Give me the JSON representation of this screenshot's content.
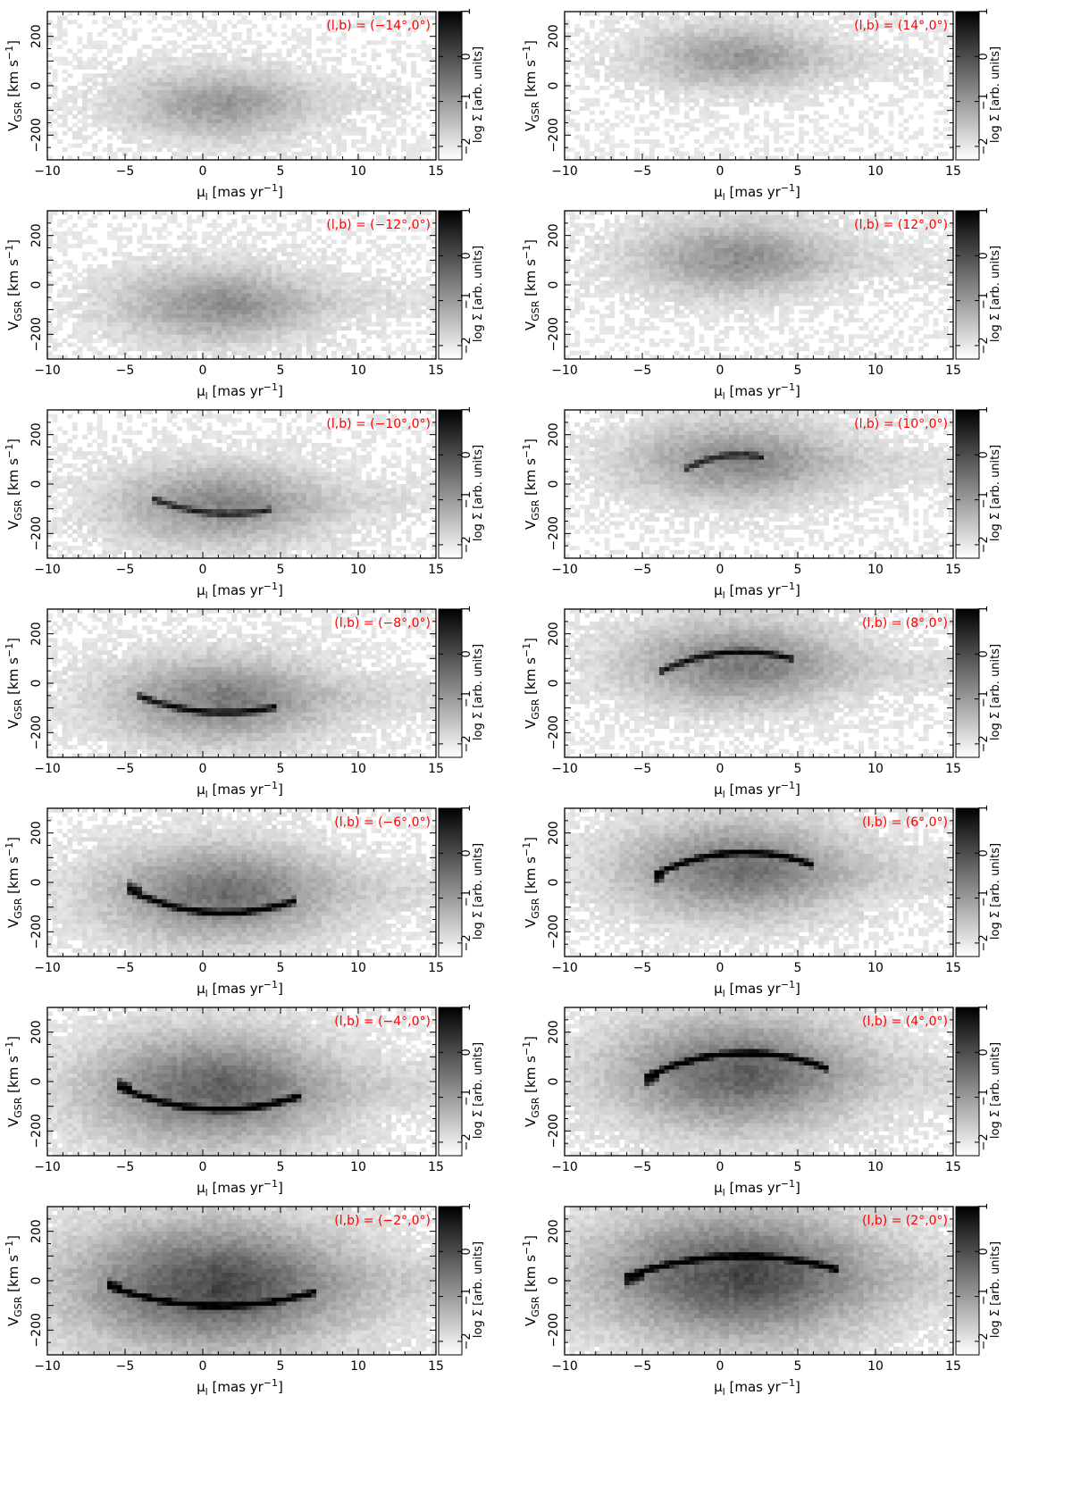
{
  "figure": {
    "colors": {
      "label": "#ff0000",
      "axis": "#000000",
      "background": "#ffffff"
    },
    "cmap": "grey (white = low, black = high)"
  },
  "chart_data": [
    {
      "type": "heatmap",
      "title": "(l,b) = (−14°,0°)",
      "l": -14,
      "xlabel": "μ_l [mas yr^-1]",
      "ylabel": "V_GSR [km s^-1]",
      "xlim": [
        -10,
        15
      ],
      "ylim": [
        -300,
        300
      ],
      "xticks": [
        -10,
        -5,
        0,
        5,
        10,
        15
      ],
      "yticks": [
        -200,
        0,
        200
      ],
      "colorbar": {
        "label": "log Σ [arb. units]",
        "range": [
          -2.3,
          1
        ],
        "ticks": [
          -2,
          -1,
          0,
          1
        ]
      },
      "distribution": {
        "cx": 1,
        "cy": -75,
        "sx": 2.8,
        "sy": 65,
        "vx": 0,
        "vy": -5,
        "amp": 0.38,
        "tail_mu": 10,
        "stream": null
      }
    },
    {
      "type": "heatmap",
      "title": "(l,b) = (14°,0°)",
      "l": 14,
      "xlabel": "μ_l [mas yr^-1]",
      "ylabel": "V_GSR [km s^-1]",
      "xlim": [
        -10,
        15
      ],
      "ylim": [
        -300,
        300
      ],
      "xticks": [
        -10,
        -5,
        0,
        5,
        10,
        15
      ],
      "yticks": [
        -200,
        0,
        200
      ],
      "colorbar": {
        "label": "log Σ [arb. units]",
        "range": [
          -2.3,
          1
        ],
        "ticks": [
          -2,
          -1,
          0,
          1
        ]
      },
      "distribution": {
        "cx": 1,
        "cy": 115,
        "sx": 2.8,
        "sy": 60,
        "vx": 0,
        "vy": 5,
        "amp": 0.38,
        "tail_mu": 10,
        "stream": null
      }
    },
    {
      "type": "heatmap",
      "title": "(l,b) = (−12°,0°)",
      "l": -12,
      "xlabel": "μ_l [mas yr^-1]",
      "ylabel": "V_GSR [km s^-1]",
      "xlim": [
        -10,
        15
      ],
      "ylim": [
        -300,
        300
      ],
      "xticks": [
        -10,
        -5,
        0,
        5,
        10,
        15
      ],
      "yticks": [
        -200,
        0,
        200
      ],
      "colorbar": {
        "label": "log Σ [arb. units]",
        "range": [
          -2.3,
          1
        ],
        "ticks": [
          -2,
          -1,
          0,
          1
        ]
      },
      "distribution": {
        "cx": 1,
        "cy": -80,
        "sx": 3.0,
        "sy": 70,
        "vx": 0,
        "vy": -4,
        "amp": 0.42,
        "tail_mu": 11,
        "stream": null
      }
    },
    {
      "type": "heatmap",
      "title": "(l,b) = (12°,0°)",
      "l": 12,
      "xlabel": "μ_l [mas yr^-1]",
      "ylabel": "V_GSR [km s^-1]",
      "xlim": [
        -10,
        15
      ],
      "ylim": [
        -300,
        300
      ],
      "xticks": [
        -10,
        -5,
        0,
        5,
        10,
        15
      ],
      "yticks": [
        -200,
        0,
        200
      ],
      "colorbar": {
        "label": "log Σ [arb. units]",
        "range": [
          -2.3,
          1
        ],
        "ticks": [
          -2,
          -1,
          0,
          1
        ]
      },
      "distribution": {
        "cx": 1,
        "cy": 110,
        "sx": 3.0,
        "sy": 70,
        "vx": 0,
        "vy": 4,
        "amp": 0.42,
        "tail_mu": 11,
        "stream": null
      }
    },
    {
      "type": "heatmap",
      "title": "(l,b) = (−10°,0°)",
      "l": -10,
      "xlabel": "μ_l [mas yr^-1]",
      "ylabel": "V_GSR [km s^-1]",
      "xlim": [
        -10,
        15
      ],
      "ylim": [
        -300,
        300
      ],
      "xticks": [
        -10,
        -5,
        0,
        5,
        10,
        15
      ],
      "yticks": [
        -200,
        0,
        200
      ],
      "colorbar": {
        "label": "log Σ [arb. units]",
        "range": [
          -2.3,
          1
        ],
        "ticks": [
          -2,
          -1,
          0,
          1
        ]
      },
      "distribution": {
        "cx": 1,
        "cy": -85,
        "sx": 3.2,
        "sy": 75,
        "vx": 0,
        "vy": -4,
        "amp": 0.45,
        "tail_mu": 12,
        "stream": {
          "x0": -3,
          "x1": 4,
          "a": -85,
          "b": 22,
          "c": -115,
          "w": 13,
          "s": 0.75,
          "blob": false
        }
      }
    },
    {
      "type": "heatmap",
      "title": "(l,b) = (10°,0°)",
      "l": 10,
      "xlabel": "μ_l [mas yr^-1]",
      "ylabel": "V_GSR [km s^-1]",
      "xlim": [
        -10,
        15
      ],
      "ylim": [
        -300,
        300
      ],
      "xticks": [
        -10,
        -5,
        0,
        5,
        10,
        15
      ],
      "yticks": [
        -200,
        0,
        200
      ],
      "colorbar": {
        "label": "log Σ [arb. units]",
        "range": [
          -2.3,
          1
        ],
        "ticks": [
          -2,
          -1,
          0,
          1
        ]
      },
      "distribution": {
        "cx": 1,
        "cy": 95,
        "sx": 3.2,
        "sy": 75,
        "vx": 0,
        "vy": 4,
        "amp": 0.45,
        "tail_mu": 12,
        "stream": {
          "x0": -2,
          "x1": 2.5,
          "a": 90,
          "b": 22,
          "c": 115,
          "w": 13,
          "s": 0.75,
          "blob": false
        }
      }
    },
    {
      "type": "heatmap",
      "title": "(l,b) = (−8°,0°)",
      "l": -8,
      "xlabel": "μ_l [mas yr^-1]",
      "ylabel": "V_GSR [km s^-1]",
      "xlim": [
        -10,
        15
      ],
      "ylim": [
        -300,
        300
      ],
      "xticks": [
        -10,
        -5,
        0,
        5,
        10,
        15
      ],
      "yticks": [
        -200,
        0,
        200
      ],
      "colorbar": {
        "label": "log Σ [arb. units]",
        "range": [
          -2.3,
          1
        ],
        "ticks": [
          -2,
          -1,
          0,
          1
        ]
      },
      "distribution": {
        "cx": 1,
        "cy": -70,
        "sx": 3.3,
        "sy": 80,
        "vx": 0,
        "vy": -4,
        "amp": 0.5,
        "tail_mu": 13,
        "stream": {
          "x0": -4,
          "x1": 4.5,
          "a": -75,
          "b": 22,
          "c": -115,
          "w": 13,
          "s": 0.85,
          "blob": false
        }
      }
    },
    {
      "type": "heatmap",
      "title": "(l,b) = (8°,0°)",
      "l": 8,
      "xlabel": "μ_l [mas yr^-1]",
      "ylabel": "V_GSR [km s^-1]",
      "xlim": [
        -10,
        15
      ],
      "ylim": [
        -300,
        300
      ],
      "xticks": [
        -10,
        -5,
        0,
        5,
        10,
        15
      ],
      "yticks": [
        -200,
        0,
        200
      ],
      "colorbar": {
        "label": "log Σ [arb. units]",
        "range": [
          -2.3,
          1
        ],
        "ticks": [
          -2,
          -1,
          0,
          1
        ]
      },
      "distribution": {
        "cx": 1,
        "cy": 80,
        "sx": 3.3,
        "sy": 80,
        "vx": 0,
        "vy": 4,
        "amp": 0.5,
        "tail_mu": 13,
        "stream": {
          "x0": -3.5,
          "x1": 4.5,
          "a": 80,
          "b": 22,
          "c": 125,
          "w": 13,
          "s": 0.85,
          "blob": false
        }
      }
    },
    {
      "type": "heatmap",
      "title": "(l,b) = (−6°,0°)",
      "l": -6,
      "xlabel": "μ_l [mas yr^-1]",
      "ylabel": "V_GSR [km s^-1]",
      "xlim": [
        -10,
        15
      ],
      "ylim": [
        -300,
        300
      ],
      "xticks": [
        -10,
        -5,
        0,
        5,
        10,
        15
      ],
      "yticks": [
        -200,
        0,
        200
      ],
      "colorbar": {
        "label": "log Σ [arb. units]",
        "range": [
          -2.3,
          1
        ],
        "ticks": [
          -2,
          -1,
          0,
          1
        ]
      },
      "distribution": {
        "cx": 1,
        "cy": -45,
        "sx": 3.5,
        "sy": 90,
        "vx": 0,
        "vy": -3,
        "amp": 0.55,
        "tail_mu": 13,
        "stream": {
          "x0": -4.5,
          "x1": 5.5,
          "a": -60,
          "b": 22,
          "c": -120,
          "w": 13,
          "s": 0.95,
          "blob": true
        }
      }
    },
    {
      "type": "heatmap",
      "title": "(l,b) = (6°,0°)",
      "l": 6,
      "xlabel": "μ_l [mas yr^-1]",
      "ylabel": "V_GSR [km s^-1]",
      "xlim": [
        -10,
        15
      ],
      "ylim": [
        -300,
        300
      ],
      "xticks": [
        -10,
        -5,
        0,
        5,
        10,
        15
      ],
      "yticks": [
        -200,
        0,
        200
      ],
      "colorbar": {
        "label": "log Σ [arb. units]",
        "range": [
          -2.3,
          1
        ],
        "ticks": [
          -2,
          -1,
          0,
          1
        ]
      },
      "distribution": {
        "cx": 1,
        "cy": 55,
        "sx": 3.5,
        "sy": 90,
        "vx": 0,
        "vy": 3,
        "amp": 0.55,
        "tail_mu": 13,
        "stream": {
          "x0": -4,
          "x1": 5.5,
          "a": 60,
          "b": 22,
          "c": 120,
          "w": 13,
          "s": 0.95,
          "blob": true
        }
      }
    },
    {
      "type": "heatmap",
      "title": "(l,b) = (−4°,0°)",
      "l": -4,
      "xlabel": "μ_l [mas yr^-1]",
      "ylabel": "V_GSR [km s^-1]",
      "xlim": [
        -10,
        15
      ],
      "ylim": [
        -300,
        300
      ],
      "xticks": [
        -10,
        -5,
        0,
        5,
        10,
        15
      ],
      "yticks": [
        -200,
        0,
        200
      ],
      "colorbar": {
        "label": "log Σ [arb. units]",
        "range": [
          -2.3,
          1
        ],
        "ticks": [
          -2,
          -1,
          0,
          1
        ]
      },
      "distribution": {
        "cx": 0.5,
        "cy": -30,
        "sx": 3.7,
        "sy": 105,
        "vx": 0,
        "vy": -2,
        "amp": 0.62,
        "tail_mu": 13,
        "stream": {
          "x0": -5.2,
          "x1": 6,
          "a": -45,
          "b": 18,
          "c": -110,
          "w": 13,
          "s": 1.0,
          "blob": true
        }
      }
    },
    {
      "type": "heatmap",
      "title": "(l,b) = (4°,0°)",
      "l": 4,
      "xlabel": "μ_l [mas yr^-1]",
      "ylabel": "V_GSR [km s^-1]",
      "xlim": [
        -10,
        15
      ],
      "ylim": [
        -300,
        300
      ],
      "xticks": [
        -10,
        -5,
        0,
        5,
        10,
        15
      ],
      "yticks": [
        -200,
        0,
        200
      ],
      "colorbar": {
        "label": "log Σ [arb. units]",
        "range": [
          -2.3,
          1
        ],
        "ticks": [
          -2,
          -1,
          0,
          1
        ]
      },
      "distribution": {
        "cx": 1,
        "cy": 35,
        "sx": 3.7,
        "sy": 105,
        "vx": 0,
        "vy": 2,
        "amp": 0.62,
        "tail_mu": 13,
        "stream": {
          "x0": -4.5,
          "x1": 6.5,
          "a": 45,
          "b": 18,
          "c": 115,
          "w": 13,
          "s": 1.0,
          "blob": true
        }
      }
    },
    {
      "type": "heatmap",
      "title": "(l,b) = (−2°,0°)",
      "l": -2,
      "xlabel": "μ_l [mas yr^-1]",
      "ylabel": "V_GSR [km s^-1]",
      "xlim": [
        -10,
        15
      ],
      "ylim": [
        -300,
        300
      ],
      "xticks": [
        -10,
        -5,
        0,
        5,
        10,
        15
      ],
      "yticks": [
        -200,
        0,
        200
      ],
      "colorbar": {
        "label": "log Σ [arb. units]",
        "range": [
          -2.3,
          1
        ],
        "ticks": [
          -2,
          -1,
          0,
          1
        ]
      },
      "distribution": {
        "cx": 0.5,
        "cy": -20,
        "sx": 4.2,
        "sy": 120,
        "vx": 0,
        "vy": -1,
        "amp": 0.72,
        "tail_mu": 14,
        "stream": {
          "x0": -5.8,
          "x1": 6.8,
          "a": -40,
          "b": 12,
          "c": -100,
          "w": 13,
          "s": 1.0,
          "blob": true
        }
      }
    },
    {
      "type": "heatmap",
      "title": "(l,b) = (2°,0°)",
      "l": 2,
      "xlabel": "μ_l [mas yr^-1]",
      "ylabel": "V_GSR [km s^-1]",
      "xlim": [
        -10,
        15
      ],
      "ylim": [
        -300,
        300
      ],
      "xticks": [
        -10,
        -5,
        0,
        5,
        10,
        15
      ],
      "yticks": [
        -200,
        0,
        200
      ],
      "colorbar": {
        "label": "log Σ [arb. units]",
        "range": [
          -2.3,
          1
        ],
        "ticks": [
          -2,
          -1,
          0,
          1
        ]
      },
      "distribution": {
        "cx": 1,
        "cy": 20,
        "sx": 4.2,
        "sy": 120,
        "vx": 0,
        "vy": 1,
        "amp": 0.72,
        "tail_mu": 14,
        "stream": {
          "x0": -5.5,
          "x1": 7.2,
          "a": 40,
          "b": 12,
          "c": 100,
          "w": 13,
          "s": 1.0,
          "blob": true
        }
      }
    }
  ]
}
